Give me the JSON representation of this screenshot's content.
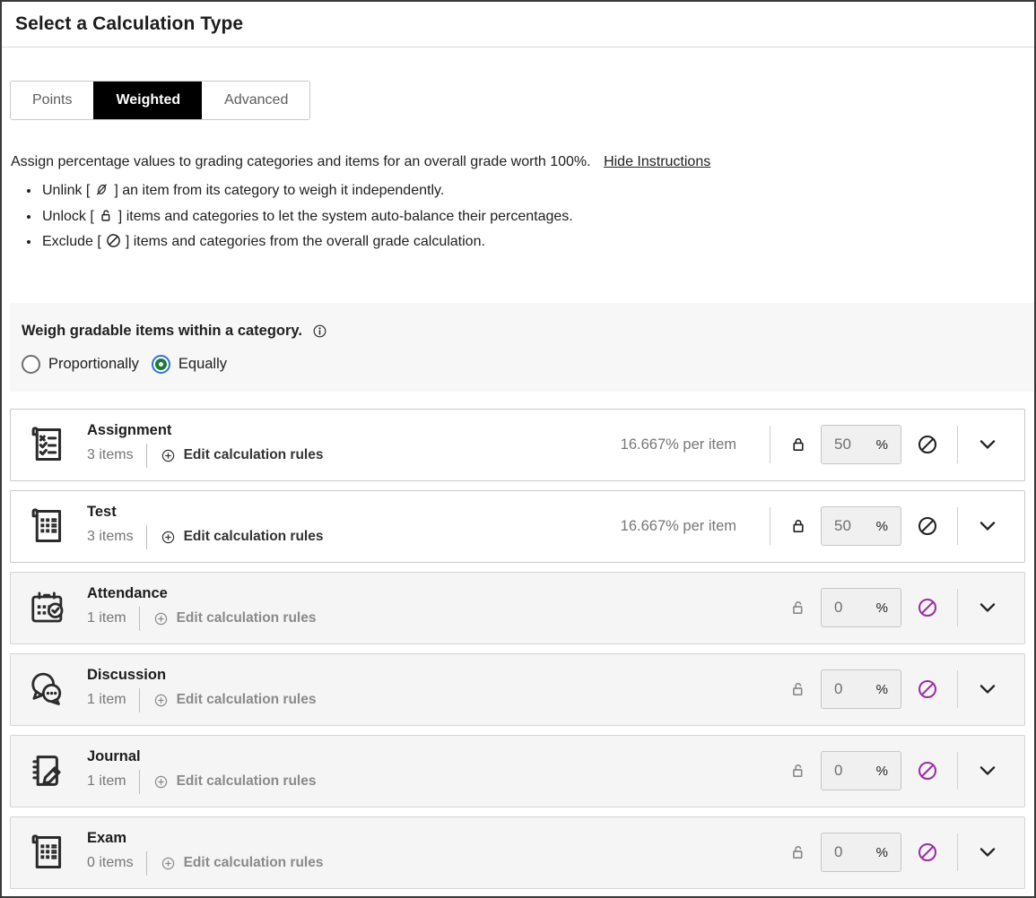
{
  "colors": {
    "selected_tab_bg": "#000000",
    "excluded_accent_purple": "#9a2fa5",
    "radio_selected_green": "#1e7b34",
    "radio_focus_ring_blue": "#2f6fdb",
    "section_bg": "#f7f7f8"
  },
  "header": {
    "title": "Select a Calculation Type"
  },
  "tabs": [
    {
      "label": "Points",
      "selected": false
    },
    {
      "label": "Weighted",
      "selected": true
    },
    {
      "label": "Advanced",
      "selected": false
    }
  ],
  "instructions": {
    "intro": "Assign percentage values to grading categories and items for an overall grade worth 100%.",
    "toggle_link": "Hide Instructions",
    "bullets": [
      {
        "pre": "Unlink [",
        "icon": "unlink-icon",
        "post": "] an item from its category to weigh it independently."
      },
      {
        "pre": "Unlock [",
        "icon": "unlock-icon",
        "post": "] items and categories to let the system auto-balance their percentages."
      },
      {
        "pre": "Exclude [",
        "icon": "exclude-icon",
        "post": "] items and categories from the overall grade calculation."
      }
    ]
  },
  "weigh_section": {
    "heading": "Weigh gradable items within a category.",
    "info_icon": "info-icon",
    "options": [
      {
        "label": "Proportionally",
        "selected": false
      },
      {
        "label": "Equally",
        "selected": true
      }
    ]
  },
  "categories": [
    {
      "name": "Assignment",
      "icon": "assignment-icon",
      "items_label": "3 items",
      "edit_label": "Edit calculation rules",
      "per_item": "16.667% per item",
      "weight": "50",
      "percent_sign": "%",
      "locked": true,
      "excluded": false
    },
    {
      "name": "Test",
      "icon": "test-icon",
      "items_label": "3 items",
      "edit_label": "Edit calculation rules",
      "per_item": "16.667% per item",
      "weight": "50",
      "percent_sign": "%",
      "locked": true,
      "excluded": false
    },
    {
      "name": "Attendance",
      "icon": "attendance-icon",
      "items_label": "1 item",
      "edit_label": "Edit calculation rules",
      "per_item": "",
      "weight": "0",
      "percent_sign": "%",
      "locked": false,
      "excluded": true
    },
    {
      "name": "Discussion",
      "icon": "discussion-icon",
      "items_label": "1 item",
      "edit_label": "Edit calculation rules",
      "per_item": "",
      "weight": "0",
      "percent_sign": "%",
      "locked": false,
      "excluded": true
    },
    {
      "name": "Journal",
      "icon": "journal-icon",
      "items_label": "1 item",
      "edit_label": "Edit calculation rules",
      "per_item": "",
      "weight": "0",
      "percent_sign": "%",
      "locked": false,
      "excluded": true
    },
    {
      "name": "Exam",
      "icon": "exam-icon",
      "items_label": "0 items",
      "edit_label": "Edit calculation rules",
      "per_item": "",
      "weight": "0",
      "percent_sign": "%",
      "locked": false,
      "excluded": true
    }
  ]
}
